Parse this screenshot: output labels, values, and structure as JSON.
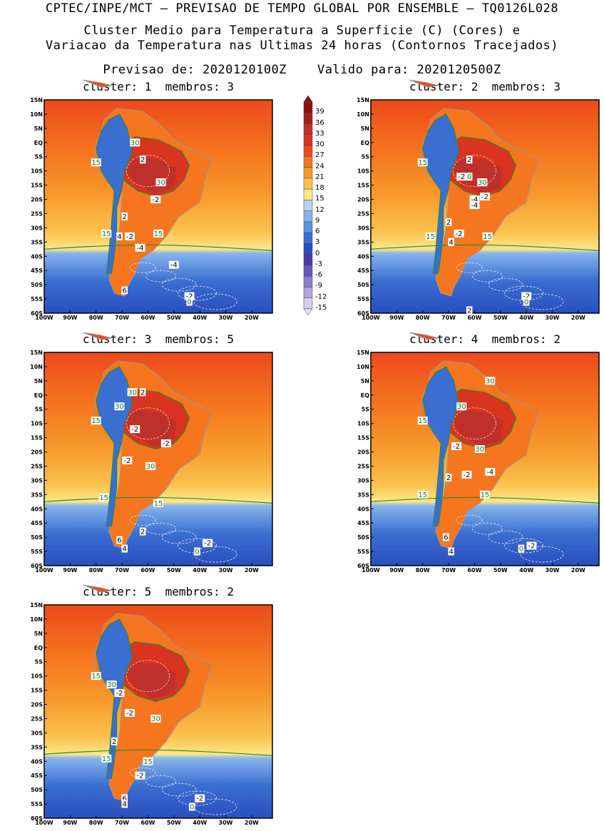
{
  "header": {
    "line1": "CPTEC/INPE/MCT – PREVISAO DE TEMPO GLOBAL POR ENSEMBLE – TQ0126L028",
    "line2": "Cluster Medio para Temperatura a Superficie (C) (Cores) e",
    "line3": "Variacao da Temperatura nas Ultimas 24 horas (Contornos Tracejados)",
    "line4": "Previsao de: 2020120100Z    Valido para: 2020120500Z"
  },
  "axes": {
    "lat_labels": [
      "15N",
      "10N",
      "5N",
      "EQ",
      "5S",
      "10S",
      "15S",
      "20S",
      "25S",
      "30S",
      "35S",
      "40S",
      "45S",
      "50S",
      "55S",
      "60S"
    ],
    "lon_labels": [
      "100W",
      "90W",
      "80W",
      "70W",
      "60W",
      "50W",
      "40W",
      "30W",
      "20W"
    ]
  },
  "legend": {
    "labels": [
      "39",
      "36",
      "33",
      "30",
      "27",
      "24",
      "21",
      "18",
      "15",
      "12",
      "9",
      "6",
      "3",
      "0",
      "-3",
      "-6",
      "-9",
      "-12",
      "-15"
    ],
    "colors": [
      "#8c1010",
      "#a51d1d",
      "#c0302a",
      "#d8341f",
      "#ec4a1c",
      "#f5761e",
      "#f79a2c",
      "#fbc24e",
      "#fde689",
      "#b8d4f0",
      "#86b4ec",
      "#5a92e0",
      "#3a6ed0",
      "#2a4ec0",
      "#4a3aa8",
      "#6a58bc",
      "#8e7ccc",
      "#b2a4dc",
      "#d6ccec"
    ]
  },
  "clusters": [
    {
      "label": "cluster: 1",
      "members_label": "membros: 3"
    },
    {
      "label": "cluster: 2",
      "members_label": "membros: 3"
    },
    {
      "label": "cluster: 3",
      "members_label": "membros: 5"
    },
    {
      "label": "cluster: 4",
      "members_label": "membros: 2"
    },
    {
      "label": "cluster: 5",
      "members_label": "membros: 2"
    }
  ],
  "contour_labels": [
    [
      [
        "30"
      ],
      [
        "2"
      ],
      [
        "15"
      ],
      [
        "30"
      ],
      [
        "-2"
      ],
      [
        "2"
      ],
      [
        "15"
      ],
      [
        "4"
      ],
      [
        "-2"
      ],
      [
        "15"
      ],
      [
        "-4"
      ],
      [
        "-4"
      ],
      [
        "6"
      ],
      [
        "-2"
      ],
      [
        "0"
      ]
    ],
    [
      [
        "2"
      ],
      [
        "15"
      ],
      [
        "-2"
      ],
      [
        "0"
      ],
      [
        "30"
      ],
      [
        "-4"
      ],
      [
        "-2"
      ],
      [
        "-4"
      ],
      [
        "2"
      ],
      [
        "15"
      ],
      [
        "-2"
      ],
      [
        "4"
      ],
      [
        "15"
      ],
      [
        "-2"
      ],
      [
        "0"
      ],
      [
        "2"
      ]
    ],
    [
      [
        "30"
      ],
      [
        "2"
      ],
      [
        "30"
      ],
      [
        "15"
      ],
      [
        "-2"
      ],
      [
        "-2"
      ],
      [
        "-2"
      ],
      [
        "30"
      ],
      [
        "15"
      ],
      [
        "15"
      ],
      [
        "2"
      ],
      [
        "6"
      ],
      [
        "-2"
      ],
      [
        "4"
      ],
      [
        "0"
      ]
    ],
    [
      [
        "30"
      ],
      [
        "30"
      ],
      [
        "15"
      ],
      [
        "-2"
      ],
      [
        "30"
      ],
      [
        "-2"
      ],
      [
        "-4"
      ],
      [
        "15"
      ],
      [
        "15"
      ],
      [
        "2"
      ],
      [
        "6"
      ],
      [
        "-2"
      ],
      [
        "4"
      ],
      [
        "0"
      ]
    ],
    [
      [
        "15"
      ],
      [
        "30"
      ],
      [
        "-2"
      ],
      [
        "-2"
      ],
      [
        "30"
      ],
      [
        "2"
      ],
      [
        "15"
      ],
      [
        "15"
      ],
      [
        "-2"
      ],
      [
        "6"
      ],
      [
        "4"
      ],
      [
        "-2"
      ],
      [
        "0"
      ]
    ]
  ]
}
